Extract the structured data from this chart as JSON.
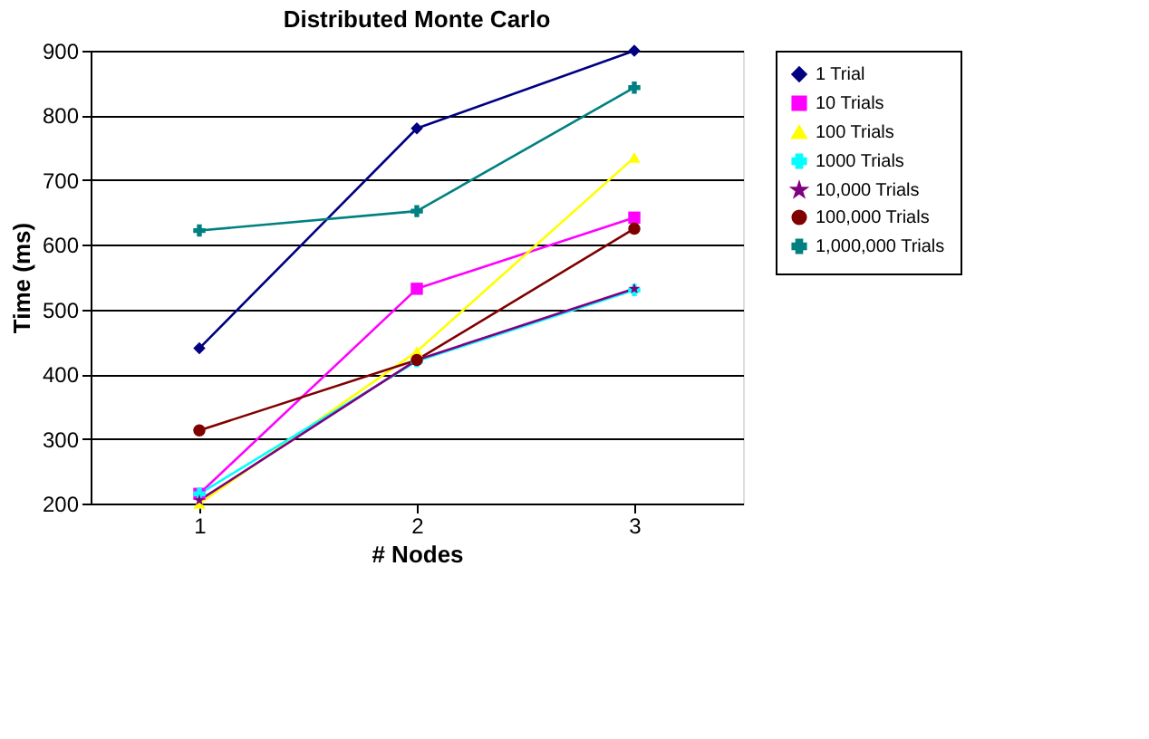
{
  "chart_data": {
    "type": "line",
    "title": "Distributed Monte Carlo",
    "xlabel": "# Nodes",
    "ylabel": "Time (ms)",
    "categories": [
      "1",
      "2",
      "3"
    ],
    "ylim": [
      200,
      900
    ],
    "yticks": [
      200,
      300,
      400,
      500,
      600,
      700,
      800,
      900
    ],
    "grid": "y",
    "legend": "right",
    "series": [
      {
        "name": "1 Trial",
        "color": "#000080",
        "marker": "diamond",
        "values": [
          440,
          780,
          900
        ]
      },
      {
        "name": "10 Trials",
        "color": "#ff00ff",
        "marker": "square",
        "values": [
          215,
          532,
          642
        ]
      },
      {
        "name": "100 Trials",
        "color": "#ffff00",
        "marker": "triangle",
        "values": [
          200,
          435,
          735
        ]
      },
      {
        "name": "1000 Trials",
        "color": "#00ffff",
        "marker": "cross",
        "values": [
          215,
          420,
          530
        ]
      },
      {
        "name": "10,000 Trials",
        "color": "#800080",
        "marker": "star",
        "values": [
          205,
          422,
          532
        ]
      },
      {
        "name": "100,000 Trials",
        "color": "#800000",
        "marker": "circle",
        "values": [
          313,
          422,
          625
        ]
      },
      {
        "name": "1,000,000 Trials",
        "color": "#008080",
        "marker": "cross",
        "values": [
          622,
          652,
          843
        ]
      }
    ]
  }
}
